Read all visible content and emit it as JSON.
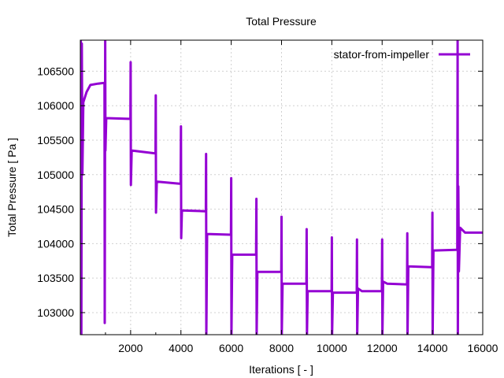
{
  "chart_data": {
    "type": "line",
    "title": "Total Pressure",
    "xlabel": "Iterations [ - ]",
    "ylabel": "Total Pressure [ Pa ]",
    "xlim": [
      0,
      16000
    ],
    "ylim": [
      102680,
      106950
    ],
    "xticks": [
      2000,
      4000,
      6000,
      8000,
      10000,
      12000,
      14000,
      16000
    ],
    "xtick_labels": [
      "2000",
      "4000",
      "6000",
      "8000",
      "10000",
      "12000",
      "14000",
      "16000"
    ],
    "yticks": [
      103000,
      103500,
      104000,
      104500,
      105000,
      105500,
      106000,
      106500
    ],
    "ytick_labels": [
      "103000",
      "103500",
      "104000",
      "104500",
      "105000",
      "105500",
      "106000",
      "106500"
    ],
    "grid": true,
    "legend_position": "top-right",
    "series": [
      {
        "name": "stator-from-impeller",
        "color": "#9400d3",
        "points": [
          [
            0,
            102680
          ],
          [
            20,
            106950
          ],
          [
            40,
            102680
          ],
          [
            60,
            106900
          ],
          [
            80,
            105000
          ],
          [
            120,
            106050
          ],
          [
            250,
            106200
          ],
          [
            400,
            106300
          ],
          [
            700,
            106320
          ],
          [
            960,
            106330
          ],
          [
            970,
            102850
          ],
          [
            990,
            106950
          ],
          [
            1000,
            105350
          ],
          [
            1030,
            105820
          ],
          [
            1900,
            105810
          ],
          [
            1990,
            105810
          ],
          [
            2000,
            106630
          ],
          [
            2010,
            104850
          ],
          [
            2040,
            105350
          ],
          [
            2940,
            105310
          ],
          [
            2990,
            105310
          ],
          [
            3000,
            106150
          ],
          [
            3010,
            104450
          ],
          [
            3040,
            104900
          ],
          [
            3940,
            104870
          ],
          [
            3990,
            104870
          ],
          [
            4000,
            105700
          ],
          [
            4010,
            104080
          ],
          [
            4040,
            104480
          ],
          [
            4940,
            104470
          ],
          [
            4990,
            104470
          ],
          [
            5000,
            105300
          ],
          [
            5010,
            102680
          ],
          [
            5040,
            104140
          ],
          [
            5940,
            104130
          ],
          [
            5990,
            104130
          ],
          [
            6000,
            104950
          ],
          [
            6010,
            102680
          ],
          [
            6040,
            103840
          ],
          [
            6940,
            103840
          ],
          [
            6990,
            103840
          ],
          [
            7000,
            104650
          ],
          [
            7010,
            102680
          ],
          [
            7040,
            103590
          ],
          [
            7940,
            103590
          ],
          [
            7990,
            103590
          ],
          [
            8000,
            104390
          ],
          [
            8010,
            102680
          ],
          [
            8040,
            103420
          ],
          [
            8940,
            103420
          ],
          [
            8990,
            103420
          ],
          [
            9000,
            104210
          ],
          [
            9010,
            102680
          ],
          [
            9040,
            103310
          ],
          [
            9940,
            103310
          ],
          [
            9990,
            103310
          ],
          [
            10000,
            104090
          ],
          [
            10010,
            102680
          ],
          [
            10040,
            103290
          ],
          [
            10940,
            103290
          ],
          [
            10990,
            103290
          ],
          [
            11000,
            104060
          ],
          [
            11010,
            102680
          ],
          [
            11040,
            103350
          ],
          [
            11200,
            103310
          ],
          [
            11940,
            103310
          ],
          [
            11990,
            103310
          ],
          [
            12000,
            104060
          ],
          [
            12010,
            102680
          ],
          [
            12040,
            103450
          ],
          [
            12200,
            103420
          ],
          [
            12940,
            103410
          ],
          [
            12990,
            103410
          ],
          [
            13000,
            104150
          ],
          [
            13010,
            102680
          ],
          [
            13040,
            103670
          ],
          [
            13940,
            103660
          ],
          [
            13990,
            103660
          ],
          [
            14000,
            104450
          ],
          [
            14010,
            102680
          ],
          [
            14040,
            103900
          ],
          [
            14940,
            103910
          ],
          [
            14990,
            103910
          ],
          [
            15000,
            106950
          ],
          [
            15010,
            102680
          ],
          [
            15030,
            104830
          ],
          [
            15050,
            103600
          ],
          [
            15100,
            104230
          ],
          [
            15300,
            104160
          ],
          [
            15600,
            104160
          ],
          [
            16000,
            104160
          ]
        ]
      }
    ]
  }
}
